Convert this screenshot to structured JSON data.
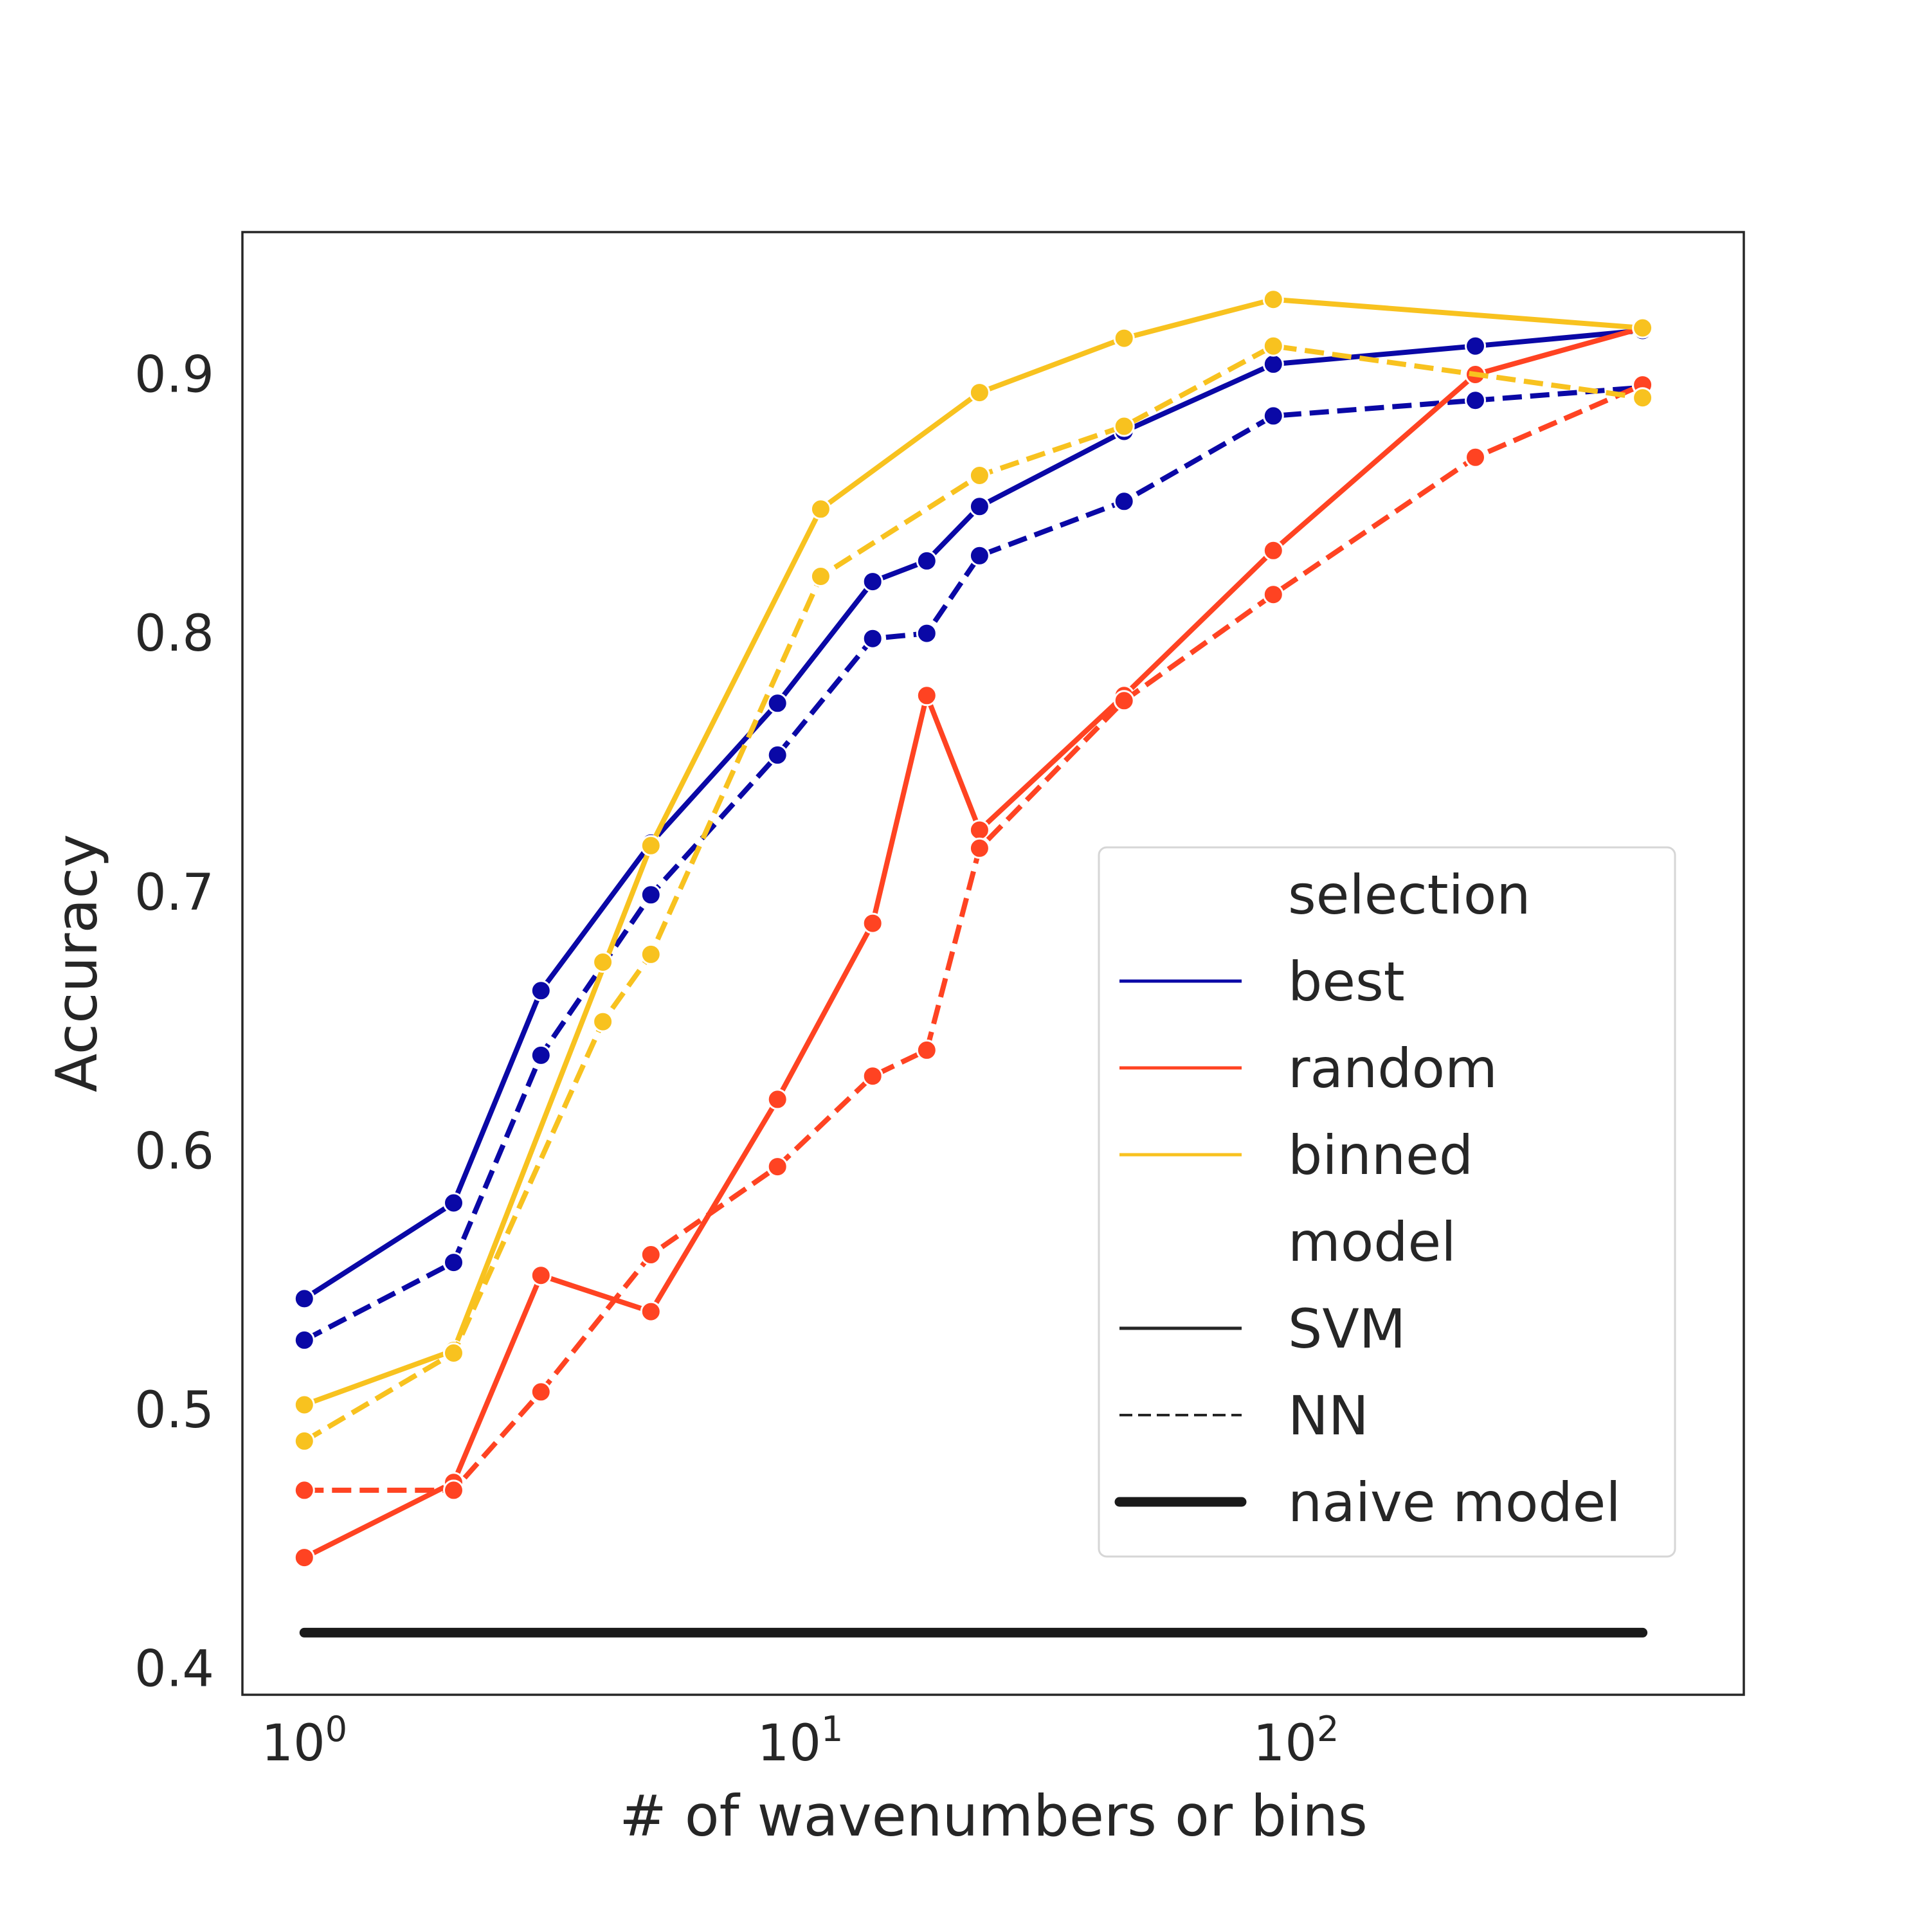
{
  "chart_data": {
    "type": "line",
    "title": "",
    "xlabel": "# of wavenumbers or bins",
    "ylabel": "Accuracy",
    "xscale": "log",
    "xlim": [
      0.75,
      800
    ],
    "ylim": [
      0.39,
      0.955
    ],
    "x_ticks": [
      1,
      10,
      100
    ],
    "x_tick_labels": [
      {
        "base": "10",
        "exp": "0"
      },
      {
        "base": "10",
        "exp": "1"
      },
      {
        "base": "10",
        "exp": "2"
      }
    ],
    "y_ticks": [
      0.4,
      0.5,
      0.6,
      0.7,
      0.8,
      0.9
    ],
    "y_tick_labels": [
      "0.4",
      "0.5",
      "0.6",
      "0.7",
      "0.8",
      "0.9"
    ],
    "grid": false,
    "legend_position": "lower-right",
    "legend": [
      {
        "label": "selection",
        "kind": "header"
      },
      {
        "label": "best",
        "kind": "color",
        "color": "#0a08a6"
      },
      {
        "label": "random",
        "kind": "color",
        "color": "#ff4322"
      },
      {
        "label": "binned",
        "kind": "color",
        "color": "#f8c21f"
      },
      {
        "label": "model",
        "kind": "header"
      },
      {
        "label": "SVM",
        "kind": "style",
        "dash": "solid",
        "color": "#262626"
      },
      {
        "label": "NN",
        "kind": "style",
        "dash": "dashed",
        "color": "#262626"
      },
      {
        "label": "naive model",
        "kind": "thick",
        "color": "#1a1a1a"
      }
    ],
    "series": [
      {
        "selection": "best",
        "model": "SVM",
        "color": "#0a08a6",
        "dash": "solid",
        "x": [
          1,
          2,
          3,
          5,
          9,
          14,
          18,
          23,
          45,
          90,
          230,
          500
        ],
        "y": [
          0.543,
          0.58,
          0.662,
          0.719,
          0.773,
          0.82,
          0.828,
          0.849,
          0.878,
          0.904,
          0.911,
          0.917
        ]
      },
      {
        "selection": "best",
        "model": "NN",
        "color": "#0a08a6",
        "dash": "dashed",
        "x": [
          1,
          2,
          3,
          5,
          9,
          14,
          18,
          23,
          45,
          90,
          230,
          500
        ],
        "y": [
          0.527,
          0.557,
          0.637,
          0.699,
          0.753,
          0.798,
          0.8,
          0.83,
          0.851,
          0.884,
          0.89,
          0.895
        ]
      },
      {
        "selection": "random",
        "model": "SVM",
        "color": "#ff4322",
        "dash": "solid",
        "x": [
          1,
          2,
          3,
          5,
          9,
          14,
          18,
          23,
          45,
          90,
          230,
          500
        ],
        "y": [
          0.443,
          0.472,
          0.552,
          0.538,
          0.62,
          0.688,
          0.776,
          0.724,
          0.776,
          0.832,
          0.9,
          0.918
        ]
      },
      {
        "selection": "random",
        "model": "NN",
        "color": "#ff4322",
        "dash": "dashed",
        "x": [
          1,
          2,
          3,
          5,
          9,
          14,
          18,
          23,
          45,
          90,
          230,
          500
        ],
        "y": [
          0.469,
          0.469,
          0.507,
          0.56,
          0.594,
          0.629,
          0.639,
          0.717,
          0.774,
          0.815,
          0.868,
          0.896
        ]
      },
      {
        "selection": "binned",
        "model": "SVM",
        "color": "#f8c21f",
        "dash": "solid",
        "x": [
          1,
          2,
          5,
          11,
          23,
          45,
          90,
          500
        ],
        "y": [
          0.502,
          0.523,
          0.718,
          0.848,
          0.893,
          0.914,
          0.929,
          0.918
        ]
      },
      {
        "selection": "binned",
        "model": "NN",
        "color": "#f8c21f",
        "dash": "dashed",
        "x": [
          1,
          2,
          4,
          5,
          11,
          23,
          45,
          90,
          500
        ],
        "y": [
          0.488,
          0.522,
          0.65,
          0.676,
          0.822,
          0.861,
          0.88,
          0.911,
          0.891
        ]
      },
      {
        "selection": "random",
        "model": "SVM",
        "color": "#ff4322",
        "dash": "solid",
        "markers_only": true,
        "x": [],
        "y": []
      },
      {
        "name": "naive model",
        "color": "#1a1a1a",
        "dash": "thick",
        "no_markers": true,
        "x": [
          1,
          500
        ],
        "y": [
          0.414,
          0.414
        ]
      }
    ],
    "extra_points": [
      {
        "selection": "binned",
        "model": "SVM",
        "color": "#f8c21f",
        "x": 4,
        "y": 0.673
      }
    ]
  }
}
